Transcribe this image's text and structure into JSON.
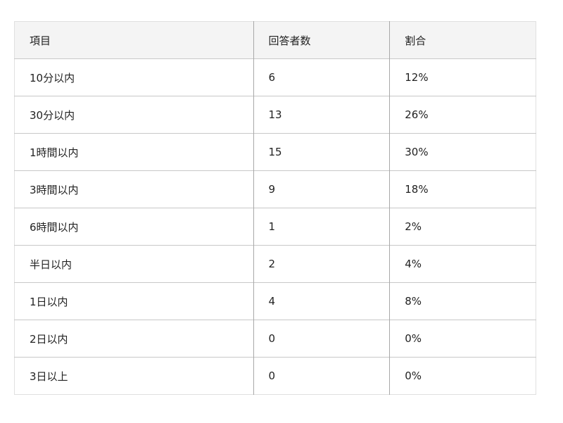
{
  "table": {
    "headers": [
      "項目",
      "回答者数",
      "割合"
    ],
    "rows": [
      [
        "10分以内",
        "6",
        "12%"
      ],
      [
        "30分以内",
        "13",
        "26%"
      ],
      [
        "1時間以内",
        "15",
        "30%"
      ],
      [
        "3時間以内",
        "9",
        "18%"
      ],
      [
        "6時間以内",
        "1",
        "2%"
      ],
      [
        "半日以内",
        "2",
        "4%"
      ],
      [
        "1日以内",
        "4",
        "8%"
      ],
      [
        "2日以内",
        "0",
        "0%"
      ],
      [
        "3日以上",
        "0",
        "0%"
      ]
    ]
  }
}
